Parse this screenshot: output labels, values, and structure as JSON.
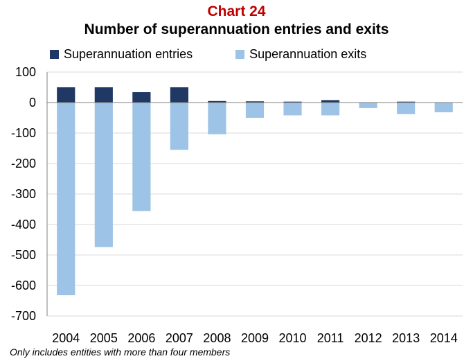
{
  "chart_label": "Chart 24",
  "colors": {
    "entries": "#1f3864",
    "exits": "#9dc3e6",
    "gridline": "#d9d9d9",
    "axis": "#7f7f7f",
    "label_accent": "#c00000"
  },
  "footnote": "Only includes entities with more than four members",
  "chart_data": {
    "type": "bar",
    "stacked": true,
    "title": "Number of superannuation entries and exits",
    "xlabel": "",
    "ylabel": "",
    "categories": [
      "2004",
      "2005",
      "2006",
      "2007",
      "2008",
      "2009",
      "2010",
      "2011",
      "2012",
      "2013",
      "2014"
    ],
    "series": [
      {
        "name": "Superannuation entries",
        "values": [
          50,
          50,
          34,
          50,
          5,
          4,
          3,
          8,
          1,
          3,
          1
        ]
      },
      {
        "name": "Superannuation exits",
        "values": [
          -632,
          -474,
          -356,
          -155,
          -104,
          -50,
          -42,
          -42,
          -18,
          -38,
          -32
        ]
      }
    ],
    "ylim": [
      -700,
      100
    ],
    "yticks": [
      100,
      0,
      -100,
      -200,
      -300,
      -400,
      -500,
      -600,
      -700
    ],
    "grid": true,
    "legend_position": "top"
  }
}
